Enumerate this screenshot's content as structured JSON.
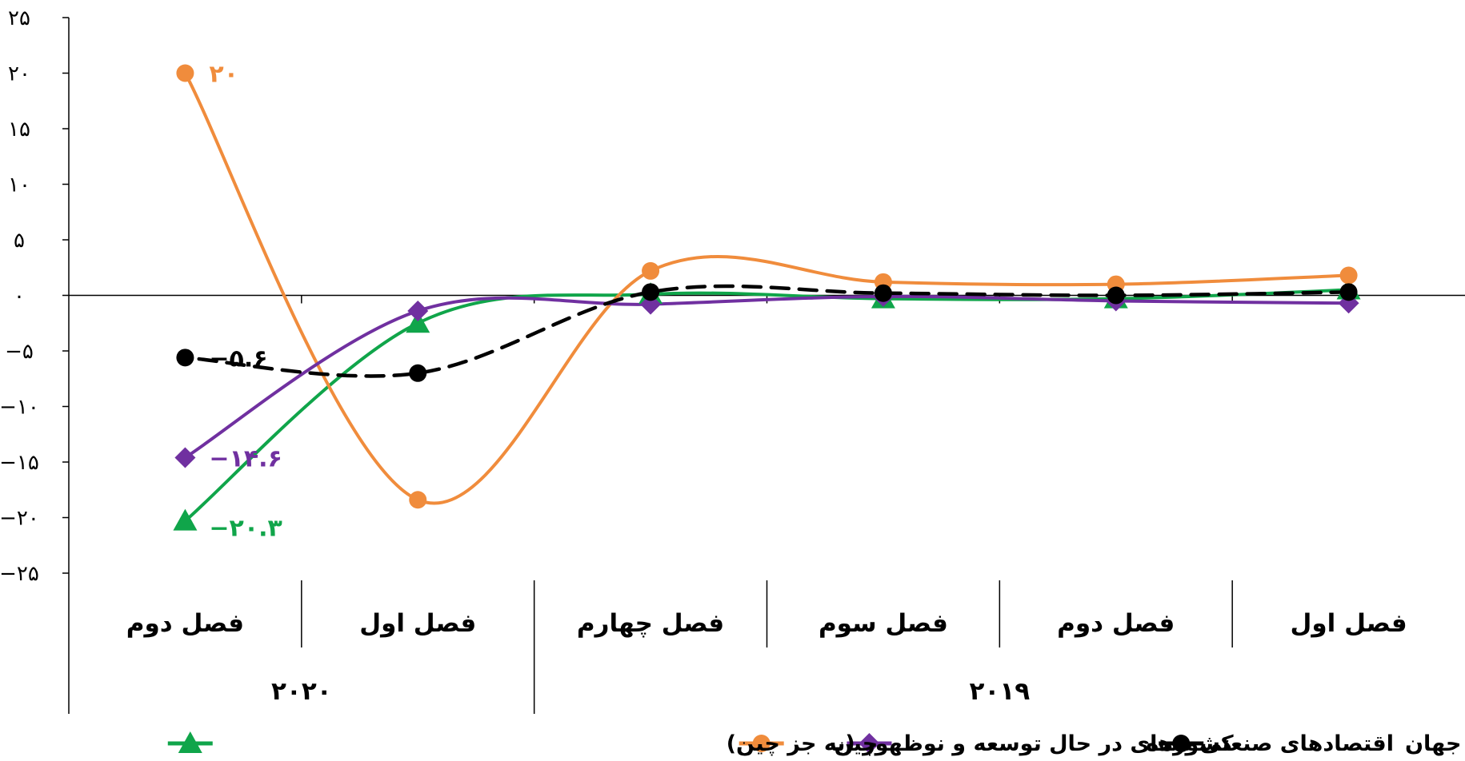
{
  "chart_data": {
    "type": "line",
    "title": "",
    "xlabel": "",
    "ylabel": "",
    "ylim": [
      -25,
      25
    ],
    "y_ticks": [
      25,
      20,
      15,
      10,
      5,
      0,
      -5,
      -10,
      -15,
      -20,
      -25
    ],
    "y_tick_labels": [
      "۲۵",
      "۲۰",
      "۱۵",
      "۱۰",
      "۵",
      "۰",
      "−۵",
      "−۱۰",
      "−۱۵",
      "−۲۰",
      "−۲۵"
    ],
    "categories": [
      "فصل اول",
      "فصل دوم",
      "فصل سوم",
      "فصل چهارم",
      "فصل اول",
      "فصل دوم"
    ],
    "year_groups": [
      {
        "label": "۲۰۱۹",
        "span": [
          0,
          3
        ]
      },
      {
        "label": "۲۰۲۰",
        "span": [
          4,
          5
        ]
      }
    ],
    "grid": false,
    "legend_position": "bottom",
    "series": [
      {
        "name": "کشورهای در حال توسعه و نوظهور (به جز چین)",
        "color": "#10a54a",
        "marker": "triangle",
        "dashed": false,
        "values": [
          0.5,
          -0.3,
          -0.3,
          0.1,
          -2.5,
          -20.3
        ],
        "end_label": "−۲۰.۳"
      },
      {
        "name": "چین",
        "color": "#f08c3c",
        "marker": "circle",
        "dashed": false,
        "values": [
          1.8,
          1.0,
          1.2,
          2.2,
          -18.4,
          20.0
        ],
        "end_label": "۲۰"
      },
      {
        "name": "اقتصادهای صنعتی شده",
        "color": "#7030a0",
        "marker": "diamond",
        "dashed": false,
        "values": [
          -0.7,
          -0.5,
          -0.1,
          -0.8,
          -1.4,
          -14.6
        ],
        "end_label": "−۱۴.۶"
      },
      {
        "name": "تولید صنعتی جهان",
        "color": "#000000",
        "marker": "circle",
        "dashed": true,
        "values": [
          0.3,
          0.0,
          0.2,
          0.3,
          -7.0,
          -5.6
        ],
        "end_label": "−۵.۶"
      }
    ]
  }
}
